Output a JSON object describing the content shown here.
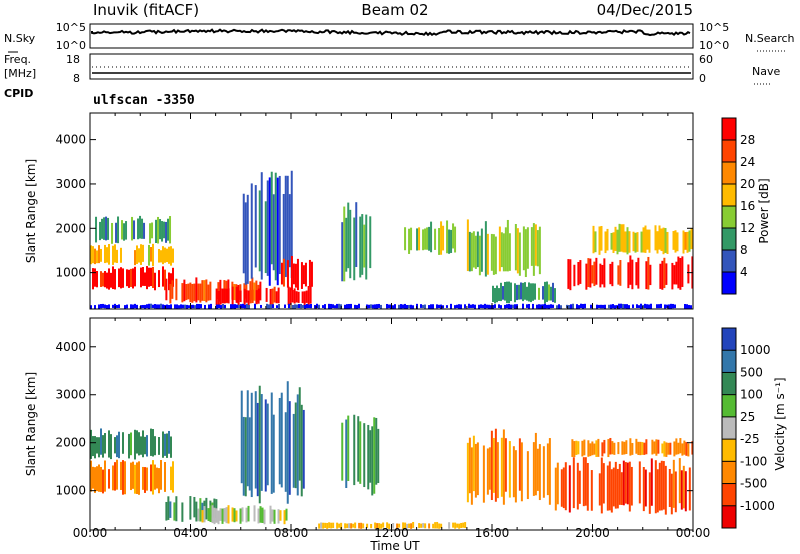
{
  "header": {
    "station": "Inuvik (fitACF)",
    "beam": "Beam 02",
    "date": "04/Dec/2015",
    "cpid_label": "CPID",
    "program": "ulfscan  -3350"
  },
  "nsky_panel": {
    "left_label": "N.Sky",
    "left_ticks": [
      "10^5",
      "10^0"
    ],
    "right_ticks": [
      "10^5",
      "10^0"
    ],
    "right_label": "N.Search"
  },
  "freq_panel": {
    "left_label_1": "Freq.",
    "left_label_2": "[MHz]",
    "left_ticks": [
      "18",
      "8"
    ],
    "right_ticks": [
      "60",
      "0"
    ],
    "right_label": "Nave"
  },
  "x_axis": {
    "ticks": [
      "00:00",
      "04:00",
      "08:00",
      "12:00",
      "16:00",
      "20:00",
      "00:00"
    ],
    "label": "Time UT"
  },
  "power_panel": {
    "ylabel": "Slant Range [km]",
    "yticks": [
      "1000",
      "2000",
      "3000",
      "4000"
    ],
    "colorbar_label": "Power [dB]",
    "colorbar_ticks": [
      "28",
      "24",
      "20",
      "16",
      "12",
      "8",
      "4"
    ],
    "colors": [
      "#ff0000",
      "#ff4400",
      "#ff8800",
      "#ffbb00",
      "#88cc33",
      "#339966",
      "#3355bb",
      "#0000ff"
    ]
  },
  "velocity_panel": {
    "ylabel": "Slant Range [km]",
    "yticks": [
      "1000",
      "2000",
      "3000",
      "4000"
    ],
    "colorbar_label": "Velocity  [m s⁻¹]",
    "colorbar_ticks": [
      "1000",
      "500",
      "100",
      "25",
      "-25",
      "-100",
      "-500",
      "-1000"
    ],
    "colors": [
      "#2244bb",
      "#3377aa",
      "#338855",
      "#55bb33",
      "#bbbbbb",
      "#ffbb00",
      "#ff8800",
      "#ff4400",
      "#ee0000"
    ]
  },
  "chart_data": {
    "type": "heatmap",
    "x_range_hours": [
      0,
      24
    ],
    "y_range_km": [
      180,
      4600
    ],
    "power_bands": [
      {
        "t0": 0.0,
        "t1": 3.3,
        "r0": 600,
        "r1": 1150,
        "level": 0
      },
      {
        "t0": 0.0,
        "t1": 3.3,
        "r0": 1150,
        "r1": 1650,
        "level": 3
      },
      {
        "t0": 0.2,
        "t1": 3.2,
        "r0": 1650,
        "r1": 2300,
        "level": 5
      },
      {
        "t0": 3.0,
        "t1": 6.8,
        "r0": 300,
        "r1": 900,
        "level": 1
      },
      {
        "t0": 5.0,
        "t1": 8.8,
        "r0": 250,
        "r1": 700,
        "level": 0
      },
      {
        "t0": 6.0,
        "t1": 8.0,
        "r0": 700,
        "r1": 3300,
        "level": 6
      },
      {
        "t0": 7.6,
        "t1": 8.8,
        "r0": 600,
        "r1": 1400,
        "level": 0
      },
      {
        "t0": 10.0,
        "t1": 11.5,
        "r0": 800,
        "r1": 2600,
        "level": 5
      },
      {
        "t0": 12.5,
        "t1": 14.5,
        "r0": 1400,
        "r1": 2200,
        "level": 4
      },
      {
        "t0": 15.0,
        "t1": 18.0,
        "r0": 900,
        "r1": 2200,
        "level": 4
      },
      {
        "t0": 16.0,
        "t1": 18.5,
        "r0": 300,
        "r1": 800,
        "level": 5
      },
      {
        "t0": 19.0,
        "t1": 24.0,
        "r0": 600,
        "r1": 1400,
        "level": 0
      },
      {
        "t0": 20.0,
        "t1": 24.0,
        "r0": 1400,
        "r1": 2100,
        "level": 3
      },
      {
        "t0": 0.0,
        "t1": 24.0,
        "r0": 180,
        "r1": 300,
        "level": 7
      }
    ],
    "velocity_bands": [
      {
        "t0": 0.0,
        "t1": 3.3,
        "r0": 900,
        "r1": 1650,
        "level": 6
      },
      {
        "t0": 0.0,
        "t1": 3.2,
        "r0": 1650,
        "r1": 2300,
        "level": 2
      },
      {
        "t0": 3.0,
        "t1": 5.0,
        "r0": 350,
        "r1": 900,
        "level": 2
      },
      {
        "t0": 4.2,
        "t1": 7.8,
        "r0": 300,
        "r1": 700,
        "level": 4
      },
      {
        "t0": 6.0,
        "t1": 8.5,
        "r0": 700,
        "r1": 3300,
        "level": 1
      },
      {
        "t0": 9.0,
        "t1": 15.0,
        "r0": 200,
        "r1": 350,
        "level": 5
      },
      {
        "t0": 10.0,
        "t1": 11.5,
        "r0": 900,
        "r1": 2600,
        "level": 2
      },
      {
        "t0": 15.0,
        "t1": 18.5,
        "r0": 700,
        "r1": 2300,
        "level": 6
      },
      {
        "t0": 18.5,
        "t1": 24.0,
        "r0": 500,
        "r1": 1700,
        "level": 7
      },
      {
        "t0": 19.0,
        "t1": 24.0,
        "r0": 1700,
        "r1": 2100,
        "level": 6
      }
    ]
  }
}
